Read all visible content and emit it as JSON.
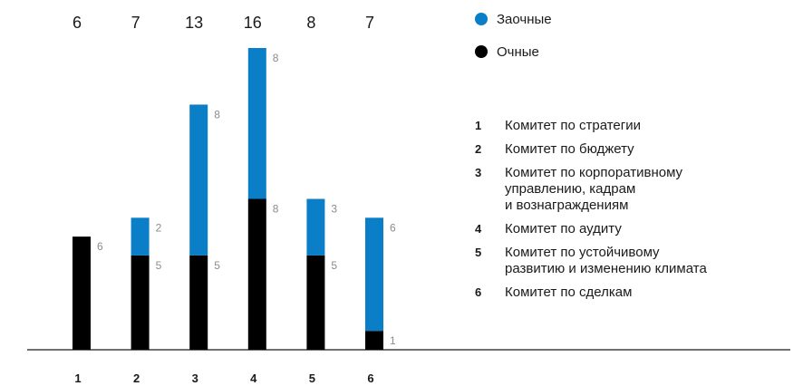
{
  "chart_data": {
    "type": "bar",
    "stacked": true,
    "categories": [
      "1",
      "2",
      "3",
      "4",
      "5",
      "6"
    ],
    "totals": [
      "6",
      "7",
      "13",
      "16",
      "8",
      "7"
    ],
    "series": [
      {
        "name": "Очные",
        "color": "#000000",
        "values": [
          6,
          5,
          5,
          8,
          5,
          1
        ]
      },
      {
        "name": "Заочные",
        "color": "#0a7fc8",
        "values": [
          0,
          2,
          8,
          8,
          3,
          6
        ]
      }
    ],
    "ylim": [
      0,
      16
    ],
    "grid": false,
    "legend_position": "top-right"
  },
  "legend": [
    {
      "label": "Заочные",
      "color": "#0a7fc8"
    },
    {
      "label": "Очные",
      "color": "#000000"
    }
  ],
  "key": [
    {
      "num": "1",
      "text": "Комитет по стратегии"
    },
    {
      "num": "2",
      "text": "Комитет по бюджету"
    },
    {
      "num": "3",
      "text": "Комитет по корпоративному\nуправлению, кадрам\nи вознаграждениям"
    },
    {
      "num": "4",
      "text": "Комитет по аудиту"
    },
    {
      "num": "5",
      "text": "Комитет по устойчивому\nразвитию и изменению климата"
    },
    {
      "num": "6",
      "text": "Комитет по сделкам"
    }
  ]
}
